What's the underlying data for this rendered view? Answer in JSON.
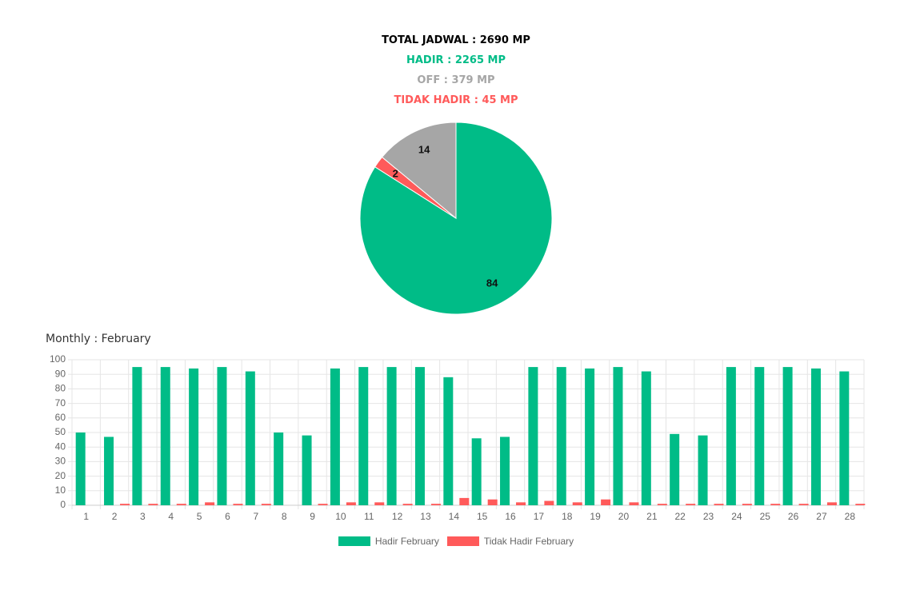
{
  "summary": {
    "total": "TOTAL JADWAL : 2690 MP",
    "hadir": "HADIR : 2265 MP",
    "off": "OFF : 379 MP",
    "tidak_hadir": "TIDAK HADIR : 45 MP"
  },
  "colors": {
    "hadir": "#00BC87",
    "off": "#A6A6A6",
    "tidak_hadir": "#FF5A5A"
  },
  "monthly": {
    "title": "Monthly : February"
  },
  "chart_data": [
    {
      "type": "pie",
      "slices": [
        {
          "label": "Hadir",
          "value": 84,
          "color": "#00BC87"
        },
        {
          "label": "Tidak Hadir",
          "value": 2,
          "color": "#FF5A5A"
        },
        {
          "label": "Off",
          "value": 14,
          "color": "#A6A6A6"
        }
      ]
    },
    {
      "type": "bar",
      "title": "Monthly : February",
      "categories": [
        "1",
        "2",
        "3",
        "4",
        "5",
        "6",
        "7",
        "8",
        "9",
        "10",
        "11",
        "12",
        "13",
        "14",
        "15",
        "16",
        "17",
        "18",
        "19",
        "20",
        "21",
        "22",
        "23",
        "24",
        "25",
        "26",
        "27",
        "28"
      ],
      "series": [
        {
          "name": "Hadir February",
          "color": "#00BC87",
          "values": [
            50,
            47,
            95,
            95,
            94,
            95,
            92,
            50,
            48,
            94,
            95,
            95,
            95,
            88,
            46,
            47,
            95,
            95,
            94,
            95,
            92,
            49,
            48,
            95,
            95,
            95,
            94,
            92
          ]
        },
        {
          "name": "Tidak Hadir February",
          "color": "#FF5A5A",
          "values": [
            0,
            1,
            1,
            1,
            2,
            1,
            1,
            0,
            1,
            2,
            2,
            1,
            1,
            5,
            4,
            2,
            3,
            2,
            4,
            2,
            1,
            1,
            1,
            1,
            1,
            1,
            2,
            1
          ]
        }
      ],
      "yticks": [
        0,
        10,
        20,
        30,
        40,
        50,
        60,
        70,
        80,
        90,
        100
      ],
      "ylim": [
        0,
        100
      ],
      "grid": true,
      "legend": "bottom"
    }
  ]
}
